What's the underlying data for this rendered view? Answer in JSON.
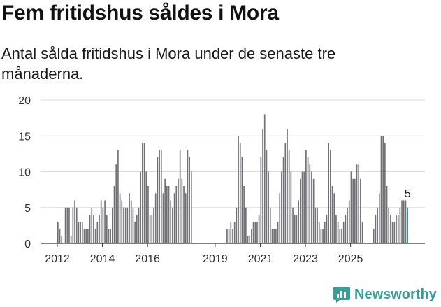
{
  "header": {
    "title": "Fem fritidshus såldes i Mora",
    "subtitle": "Antal sålda fritidshus i Mora under de senaste tre månaderna."
  },
  "brand": {
    "name": "Newsworthy",
    "color": "#3a9e98"
  },
  "chart_data": {
    "type": "bar",
    "title": "Fem fritidshus såldes i Mora",
    "subtitle": "Antal sålda fritidshus i Mora under de senaste tre månaderna.",
    "xlabel": "",
    "ylabel": "",
    "ylim": [
      0,
      20
    ],
    "yticks": [
      0,
      5,
      10,
      15,
      20
    ],
    "grid": true,
    "bar_color": "#717075",
    "highlight_color": "#1f9c98",
    "x_start": 2012.0,
    "x_step": 0.08333,
    "xticks": [
      "2012",
      "2014",
      "2016",
      "2019",
      "2021",
      "2023",
      "2025"
    ],
    "xtick_positions": [
      2012.0,
      2014.0,
      2016.0,
      2019.0,
      2021.0,
      2023.0,
      2025.0
    ],
    "annotation": {
      "label": "5",
      "value": 5
    },
    "values": [
      3,
      2,
      1,
      0,
      5,
      5,
      5,
      1,
      5,
      6,
      5,
      3,
      3,
      3,
      2,
      2,
      2,
      4,
      5,
      4,
      2,
      3,
      4,
      6,
      5,
      6,
      4,
      2,
      2,
      5,
      8,
      11,
      13,
      7,
      6,
      5,
      5,
      5,
      7,
      6,
      5,
      3,
      4,
      5,
      10,
      14,
      14,
      10,
      8,
      4,
      4,
      5,
      7,
      12,
      13,
      13,
      7,
      9,
      8,
      8,
      6,
      5,
      7,
      8,
      9,
      13,
      9,
      8,
      7,
      13,
      12,
      10,
      0,
      0,
      0,
      0,
      0,
      0,
      0,
      0,
      0,
      0,
      0,
      0,
      0,
      0,
      0,
      0,
      0,
      0,
      2,
      2,
      3,
      2,
      3,
      5,
      15,
      14,
      12,
      8,
      5,
      1,
      1,
      2,
      3,
      3,
      3,
      4,
      12,
      16,
      18,
      13,
      10,
      5,
      2,
      2,
      2,
      3,
      7,
      10,
      12,
      14,
      16,
      13,
      10,
      5,
      4,
      4,
      6,
      9,
      10,
      10,
      13,
      12,
      11,
      10,
      9,
      5,
      5,
      3,
      2,
      2,
      3,
      4,
      14,
      13,
      8,
      7,
      4,
      3,
      2,
      2,
      3,
      4,
      5,
      6,
      10,
      9,
      9,
      11,
      11,
      9,
      3,
      0,
      0,
      0,
      0,
      0,
      2,
      4,
      5,
      7,
      15,
      15,
      14,
      8,
      5,
      4,
      3,
      3,
      4,
      4,
      5,
      6,
      6,
      6,
      5
    ]
  }
}
